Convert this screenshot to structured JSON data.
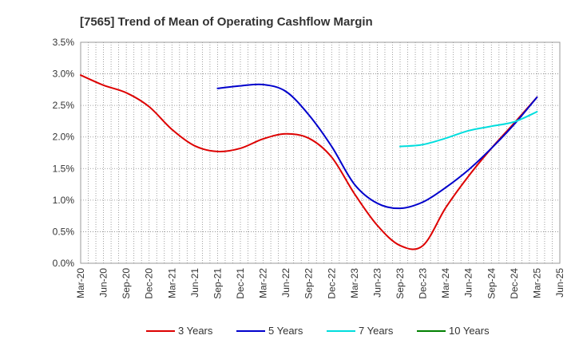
{
  "chart_data": {
    "type": "line",
    "title": "[7565]  Trend of Mean of Operating Cashflow Margin",
    "xlabel": "",
    "ylabel": "",
    "x": [
      "Mar-20",
      "Jun-20",
      "Sep-20",
      "Dec-20",
      "Mar-21",
      "Jun-21",
      "Sep-21",
      "Dec-21",
      "Mar-22",
      "Jun-22",
      "Sep-22",
      "Dec-22",
      "Mar-23",
      "Jun-23",
      "Sep-23",
      "Dec-23",
      "Mar-24",
      "Jun-24",
      "Sep-24",
      "Dec-24",
      "Mar-25",
      "Jun-25"
    ],
    "ylim": [
      0,
      3.5
    ],
    "yticks": [
      0,
      0.5,
      1.0,
      1.5,
      2.0,
      2.5,
      3.0,
      3.5
    ],
    "ytick_labels": [
      "0.0%",
      "0.5%",
      "1.0%",
      "1.5%",
      "2.0%",
      "2.5%",
      "3.0%",
      "3.5%"
    ],
    "grid": true,
    "legend_position": "bottom",
    "series": [
      {
        "name": "3 Years",
        "color": "#dd0000",
        "values": [
          2.98,
          2.82,
          2.7,
          2.48,
          2.12,
          1.86,
          1.77,
          1.82,
          1.97,
          2.05,
          1.98,
          1.68,
          1.1,
          0.6,
          0.28,
          0.28,
          0.88,
          1.38,
          1.82,
          2.22,
          2.63,
          null
        ]
      },
      {
        "name": "5 Years",
        "color": "#0000cc",
        "values": [
          null,
          null,
          null,
          null,
          null,
          null,
          2.77,
          2.81,
          2.83,
          2.72,
          2.35,
          1.85,
          1.25,
          0.95,
          0.87,
          0.97,
          1.2,
          1.48,
          1.82,
          2.2,
          2.63,
          null
        ]
      },
      {
        "name": "7 Years",
        "color": "#00dddd",
        "values": [
          null,
          null,
          null,
          null,
          null,
          null,
          null,
          null,
          null,
          null,
          null,
          null,
          null,
          null,
          1.85,
          1.88,
          1.98,
          2.1,
          2.17,
          2.24,
          2.4,
          null
        ]
      },
      {
        "name": "10 Years",
        "color": "#008000",
        "values": [
          null,
          null,
          null,
          null,
          null,
          null,
          null,
          null,
          null,
          null,
          null,
          null,
          null,
          null,
          null,
          null,
          null,
          null,
          null,
          null,
          null,
          null
        ]
      }
    ]
  }
}
